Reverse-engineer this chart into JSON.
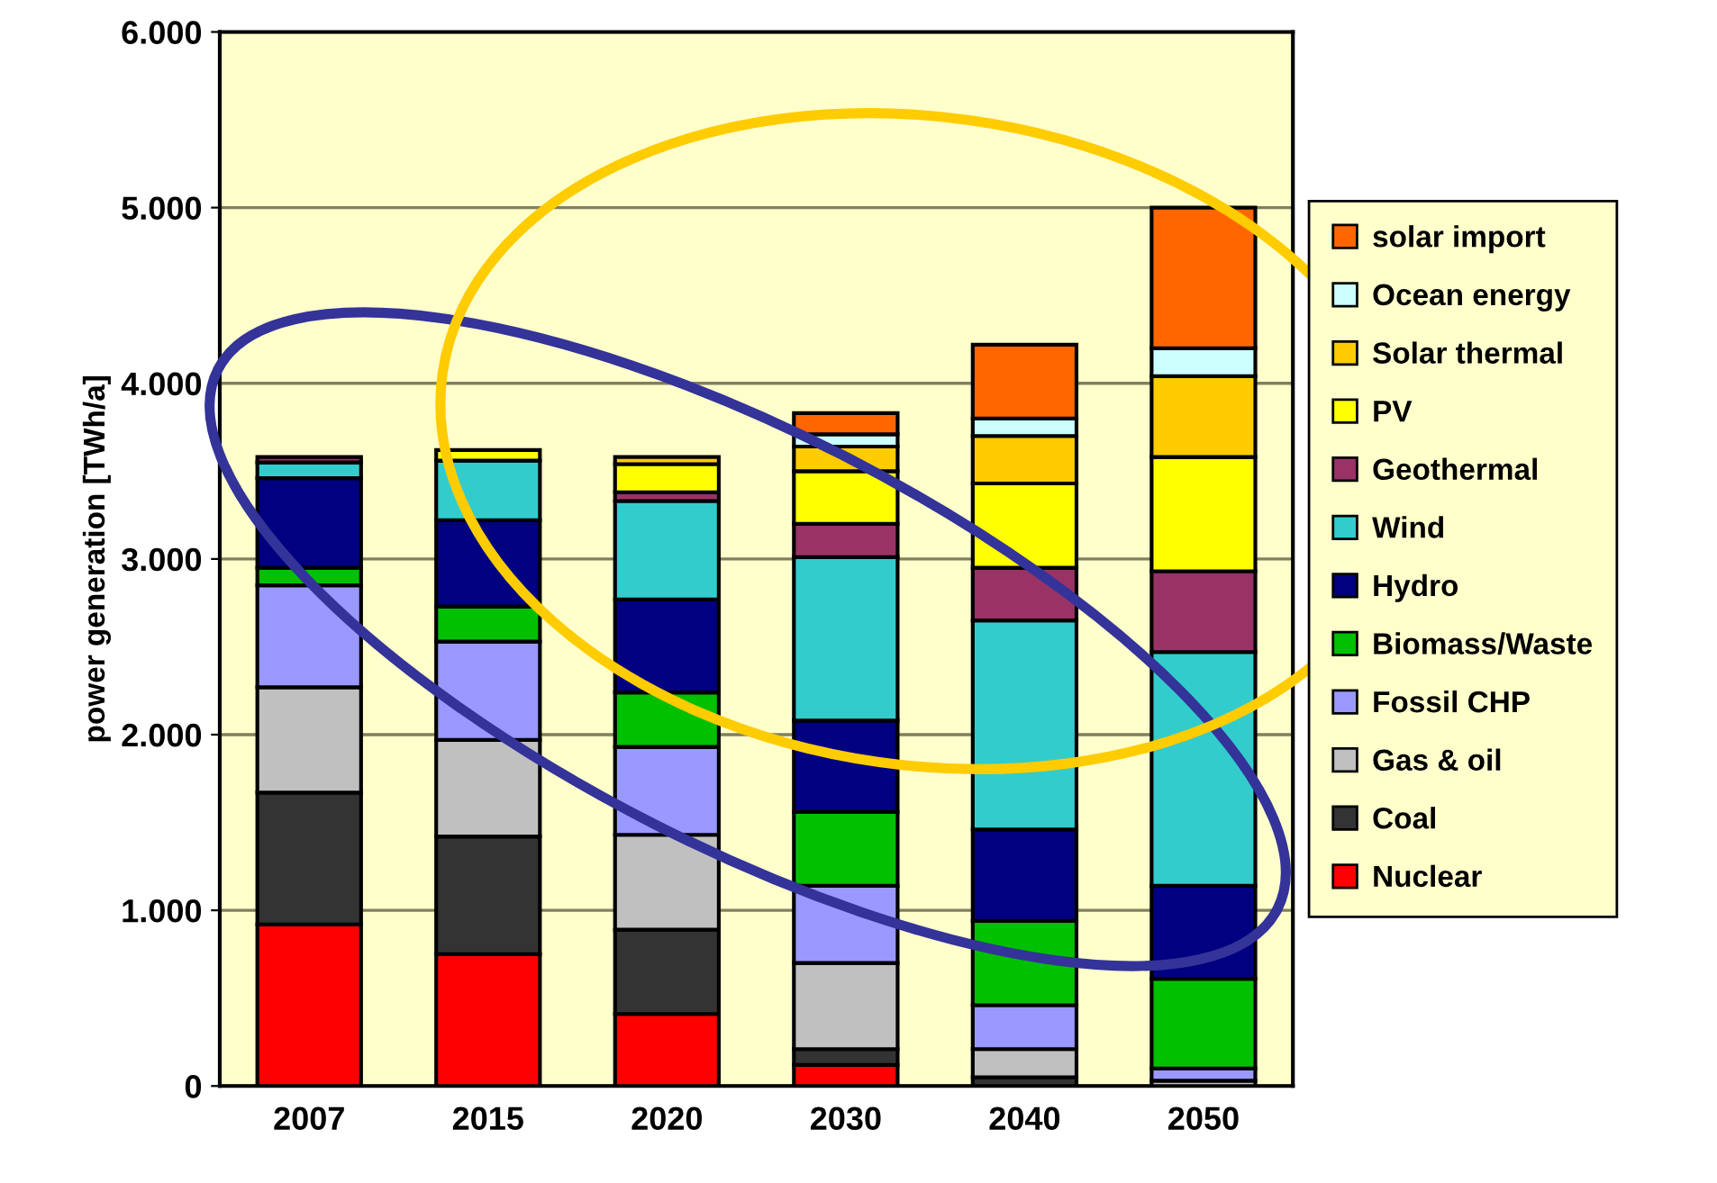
{
  "chart_data": {
    "type": "bar",
    "stacked": true,
    "ylabel": "power generation [TWh/a]",
    "categories": [
      "2007",
      "2015",
      "2020",
      "2030",
      "2040",
      "2050"
    ],
    "series": [
      {
        "name": "Nuclear",
        "color": "#ff0000",
        "values": [
          920,
          750,
          410,
          120,
          null,
          null
        ]
      },
      {
        "name": "Coal",
        "color": "#333333",
        "values": [
          750,
          670,
          480,
          90,
          50,
          null
        ]
      },
      {
        "name": "Gas & oil",
        "color": "#c0c0c0",
        "values": [
          600,
          550,
          540,
          490,
          160,
          30
        ]
      },
      {
        "name": "Fossil CHP",
        "color": "#9999ff",
        "values": [
          580,
          560,
          500,
          440,
          250,
          70
        ]
      },
      {
        "name": "Biomass/Waste",
        "color": "#00c000",
        "values": [
          100,
          200,
          310,
          420,
          480,
          510
        ]
      },
      {
        "name": "Hydro",
        "color": "#000080",
        "values": [
          510,
          490,
          530,
          520,
          520,
          530
        ]
      },
      {
        "name": "Wind",
        "color": "#33cccc",
        "values": [
          90,
          340,
          560,
          930,
          1190,
          1330
        ]
      },
      {
        "name": "Geothermal",
        "color": "#993366",
        "values": [
          30,
          null,
          50,
          190,
          300,
          460
        ]
      },
      {
        "name": "PV",
        "color": "#ffff00",
        "values": [
          null,
          60,
          160,
          300,
          480,
          650
        ]
      },
      {
        "name": "Solar thermal",
        "color": "#ffcc00",
        "values": [
          null,
          null,
          40,
          140,
          270,
          460
        ]
      },
      {
        "name": "Ocean energy",
        "color": "#ccffff",
        "values": [
          null,
          null,
          null,
          70,
          100,
          160
        ]
      },
      {
        "name": "solar import",
        "color": "#ff6600",
        "values": [
          null,
          null,
          null,
          120,
          420,
          800
        ]
      }
    ],
    "ylim": [
      0,
      6000
    ],
    "yticks": [
      0,
      {
        "value": 1000,
        "label": "1.000"
      },
      {
        "value": 2000,
        "label": "2.000"
      },
      {
        "value": 3000,
        "label": "3.000"
      },
      {
        "value": 4000,
        "label": "4.000"
      },
      {
        "value": 5000,
        "label": "5.000"
      },
      {
        "value": 6000,
        "label": "6.000"
      }
    ],
    "grid": "y",
    "legend": "right"
  }
}
